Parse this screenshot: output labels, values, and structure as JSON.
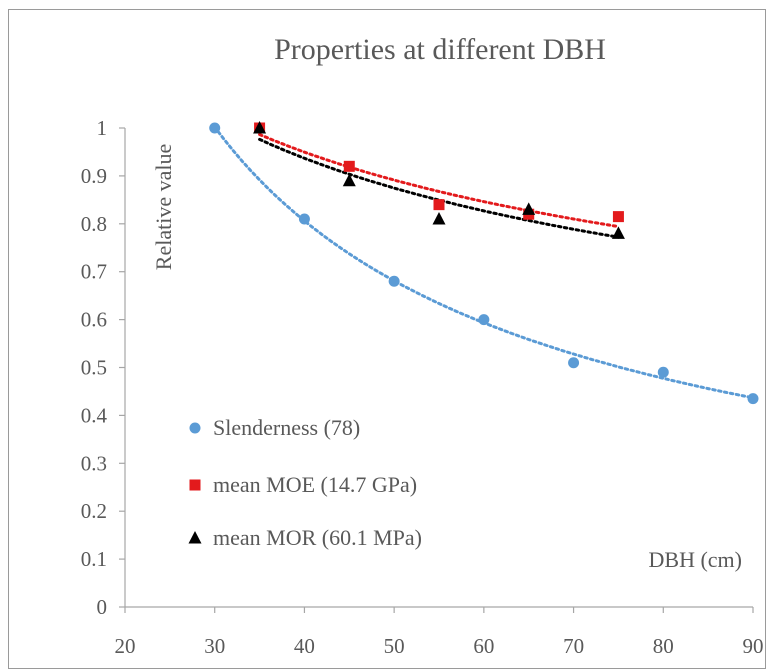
{
  "chart_data": {
    "type": "scatter",
    "title": "Properties at different DBH",
    "xlabel": "DBH (cm)",
    "ylabel": "Relative value",
    "xlim": [
      20,
      90
    ],
    "ylim": [
      0,
      1
    ],
    "x_ticks": [
      "20",
      "30",
      "40",
      "50",
      "60",
      "70",
      "80",
      "90"
    ],
    "y_ticks": [
      "0",
      "0.1",
      "0.2",
      "0.3",
      "0.4",
      "0.5",
      "0.6",
      "0.7",
      "0.8",
      "0.9",
      "1"
    ],
    "grid": false,
    "legend_position": "bottom-left",
    "series": [
      {
        "name": "Slenderness (78)",
        "marker": "circle",
        "color": "#5b9bd5",
        "trendline": "dotted",
        "x": [
          30,
          40,
          50,
          60,
          70,
          80,
          90
        ],
        "y": [
          1.0,
          0.81,
          0.68,
          0.6,
          0.51,
          0.49,
          0.435
        ]
      },
      {
        "name": "mean MOE (14.7 GPa)",
        "marker": "square",
        "color": "#e31a1c",
        "trendline": "dotted",
        "x": [
          35,
          45,
          55,
          65,
          75
        ],
        "y": [
          1.0,
          0.92,
          0.84,
          0.82,
          0.815
        ]
      },
      {
        "name": "mean MOR (60.1 MPa)",
        "marker": "triangle",
        "color": "#000000",
        "trendline": "dotted",
        "x": [
          35,
          45,
          55,
          65,
          75
        ],
        "y": [
          1.0,
          0.89,
          0.81,
          0.83,
          0.78
        ]
      }
    ]
  }
}
